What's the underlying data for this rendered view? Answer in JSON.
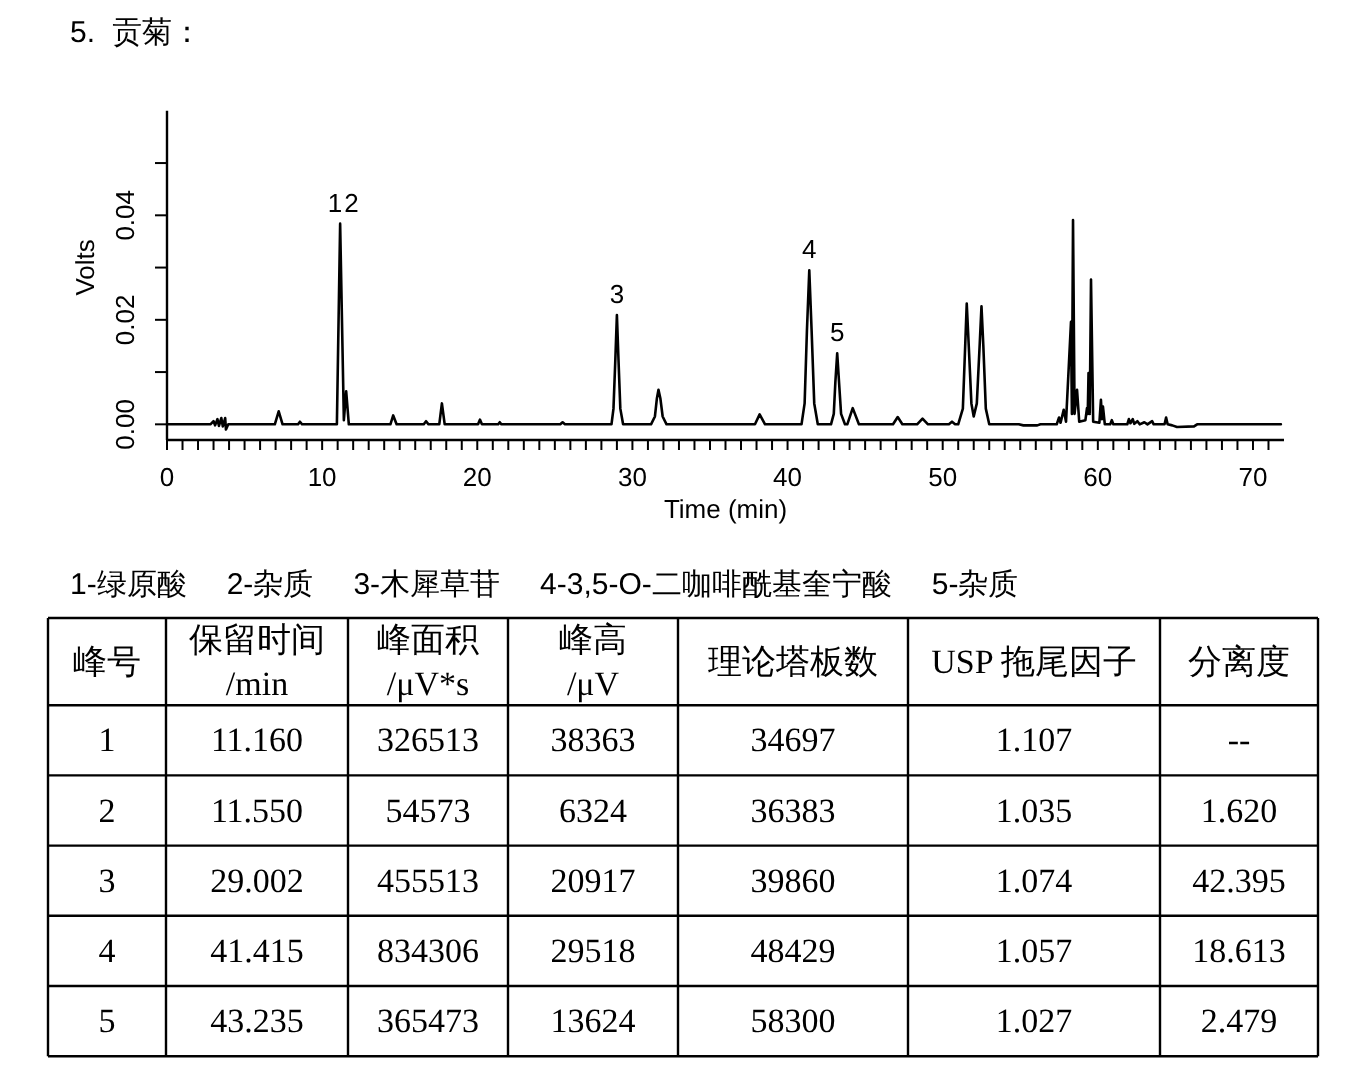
{
  "chart_data": [
    {
      "type": "line",
      "title": "5.  贡菊：",
      "xlabel": "Time (min)",
      "ylabel": "Volts",
      "color": "#000000",
      "line_style": "solid",
      "x": [
        0,
        2.8,
        3.0,
        3.1,
        3.25,
        3.35,
        3.5,
        3.6,
        3.75,
        3.8,
        3.95,
        6.95,
        7.2,
        7.45,
        8.45,
        8.57,
        8.7,
        10.95,
        11.16,
        11.4,
        11.55,
        11.72,
        14.4,
        14.58,
        14.8,
        16.55,
        16.7,
        16.85,
        17.55,
        17.72,
        17.9,
        20.05,
        20.17,
        20.3,
        21.35,
        21.45,
        21.55,
        25.35,
        25.5,
        25.65,
        28.65,
        28.78,
        28.9,
        29.0,
        29.1,
        29.22,
        29.4,
        31.2,
        31.45,
        31.58,
        31.68,
        31.8,
        31.95,
        32.2,
        37.9,
        38.2,
        38.55,
        40.9,
        41.1,
        41.25,
        41.4,
        41.55,
        41.72,
        41.95,
        42.8,
        42.98,
        43.08,
        43.2,
        43.32,
        43.45,
        43.7,
        43.85,
        44.2,
        44.6,
        46.8,
        47.1,
        47.4,
        48.35,
        48.7,
        49.05,
        50.4,
        50.6,
        50.8,
        51.0,
        51.3,
        51.45,
        51.55,
        51.68,
        51.85,
        52.0,
        52.2,
        52.38,
        52.5,
        52.62,
        52.78,
        53.0,
        54.9,
        55.2,
        56.1,
        56.3,
        57.35,
        57.5,
        57.6,
        57.8,
        57.95,
        58.27,
        58.33,
        58.4,
        58.5,
        58.66,
        58.8,
        59.2,
        59.3,
        59.35,
        59.4,
        59.48,
        59.56,
        59.7,
        60.1,
        60.2,
        60.27,
        60.33,
        60.45,
        60.8,
        60.9,
        61.0,
        61.9,
        62.0,
        62.1,
        62.25,
        62.35,
        62.55,
        62.7,
        63.0,
        63.2,
        63.5,
        63.6,
        64.3,
        64.4,
        64.5,
        64.8,
        65.1,
        66.2,
        66.4,
        71.8
      ],
      "values": [
        0,
        0,
        0.0006,
        -0.0002,
        0.001,
        -0.0003,
        0.0012,
        -0.0004,
        0.0012,
        -0.001,
        0,
        0,
        0.0025,
        0,
        0,
        0.0005,
        0,
        0,
        0.0384,
        0.0008,
        0.0063,
        0,
        0,
        0.0017,
        0,
        0,
        0.0006,
        0,
        0,
        0.004,
        0,
        0,
        0.0009,
        0,
        0,
        0.0004,
        0,
        0,
        0.0004,
        0,
        0,
        0.003,
        0.0125,
        0.0209,
        0.0125,
        0.003,
        0,
        0,
        0.0015,
        0.005,
        0.0066,
        0.005,
        0.0015,
        0,
        0,
        0.0019,
        0,
        0,
        0.004,
        0.018,
        0.0295,
        0.018,
        0.004,
        0,
        0,
        0.002,
        0.008,
        0.0136,
        0.008,
        0.002,
        0,
        0,
        0.0031,
        0,
        0,
        0.0014,
        0,
        0,
        0.0011,
        0,
        0,
        0.0005,
        0,
        0,
        0.003,
        0.015,
        0.0231,
        0.015,
        0.004,
        0.0015,
        0.004,
        0.015,
        0.0226,
        0.015,
        0.003,
        0,
        0,
        -0.0002,
        -0.0002,
        0,
        0,
        0.0013,
        0.0003,
        0.0028,
        0.0005,
        0.0196,
        0.002,
        0.0391,
        0.002,
        0.0066,
        0.0005,
        0.0008,
        0.0031,
        0.002,
        0.0098,
        0.002,
        0.0277,
        0.0005,
        0.0003,
        0.0047,
        0.001,
        0.0034,
        0,
        0,
        0.0008,
        0,
        0,
        0.001,
        0.0002,
        0.001,
        0.0001,
        0.0006,
        0,
        0.0004,
        0,
        0.0006,
        0,
        0,
        0.0013,
        0,
        -0.0002,
        -0.0005,
        -0.0004,
        0,
        0
      ],
      "xlim": [
        0,
        72
      ],
      "ylim": [
        -0.003,
        0.06
      ],
      "xticks": [
        0,
        {
          "value": 1,
          "label": null
        },
        {
          "value": 2,
          "label": null
        },
        {
          "value": 3,
          "label": null
        },
        {
          "value": 4,
          "label": null
        },
        {
          "value": 5,
          "label": null
        },
        {
          "value": 6,
          "label": null
        },
        {
          "value": 7,
          "label": null
        },
        {
          "value": 8,
          "label": null
        },
        {
          "value": 9,
          "label": null
        },
        10,
        {
          "value": 11,
          "label": null
        },
        {
          "value": 12,
          "label": null
        },
        {
          "value": 13,
          "label": null
        },
        {
          "value": 14,
          "label": null
        },
        {
          "value": 15,
          "label": null
        },
        {
          "value": 16,
          "label": null
        },
        {
          "value": 17,
          "label": null
        },
        {
          "value": 18,
          "label": null
        },
        {
          "value": 19,
          "label": null
        },
        20,
        {
          "value": 21,
          "label": null
        },
        {
          "value": 22,
          "label": null
        },
        {
          "value": 23,
          "label": null
        },
        {
          "value": 24,
          "label": null
        },
        {
          "value": 25,
          "label": null
        },
        {
          "value": 26,
          "label": null
        },
        {
          "value": 27,
          "label": null
        },
        {
          "value": 28,
          "label": null
        },
        {
          "value": 29,
          "label": null
        },
        30,
        {
          "value": 31,
          "label": null
        },
        {
          "value": 32,
          "label": null
        },
        {
          "value": 33,
          "label": null
        },
        {
          "value": 34,
          "label": null
        },
        {
          "value": 35,
          "label": null
        },
        {
          "value": 36,
          "label": null
        },
        {
          "value": 37,
          "label": null
        },
        {
          "value": 38,
          "label": null
        },
        {
          "value": 39,
          "label": null
        },
        40,
        {
          "value": 41,
          "label": null
        },
        {
          "value": 42,
          "label": null
        },
        {
          "value": 43,
          "label": null
        },
        {
          "value": 44,
          "label": null
        },
        {
          "value": 45,
          "label": null
        },
        {
          "value": 46,
          "label": null
        },
        {
          "value": 47,
          "label": null
        },
        {
          "value": 48,
          "label": null
        },
        {
          "value": 49,
          "label": null
        },
        50,
        {
          "value": 51,
          "label": null
        },
        {
          "value": 52,
          "label": null
        },
        {
          "value": 53,
          "label": null
        },
        {
          "value": 54,
          "label": null
        },
        {
          "value": 55,
          "label": null
        },
        {
          "value": 56,
          "label": null
        },
        {
          "value": 57,
          "label": null
        },
        {
          "value": 58,
          "label": null
        },
        {
          "value": 59,
          "label": null
        },
        60,
        {
          "value": 61,
          "label": null
        },
        {
          "value": 62,
          "label": null
        },
        {
          "value": 63,
          "label": null
        },
        {
          "value": 64,
          "label": null
        },
        {
          "value": 65,
          "label": null
        },
        {
          "value": 66,
          "label": null
        },
        {
          "value": 67,
          "label": null
        },
        {
          "value": 68,
          "label": null
        },
        {
          "value": 69,
          "label": null
        },
        70,
        {
          "value": 71,
          "label": null
        }
      ],
      "yticks": [
        {
          "value": 0,
          "label": "0.00"
        },
        {
          "value": 0.01,
          "label": null
        },
        {
          "value": 0.02,
          "label": "0.02"
        },
        {
          "value": 0.03,
          "label": null
        },
        {
          "value": 0.04,
          "label": "0.04"
        },
        {
          "value": 0.05,
          "label": null
        }
      ],
      "annotations": [
        {
          "text": "1",
          "x": 11.16,
          "y": 0.0384
        },
        {
          "text": "2",
          "x": 11.55,
          "y": 0.0384
        },
        {
          "text": "3",
          "x": 29.0,
          "y": 0.0209
        },
        {
          "text": "4",
          "x": 41.4,
          "y": 0.0295
        },
        {
          "text": "5",
          "x": 43.2,
          "y": 0.0136
        }
      ]
    },
    {
      "type": "heatmap",
      "annotations": [
        "1-绿原酸",
        "2-杂质",
        "3-木犀草苷",
        "4-3,5-O-二咖啡酰基奎宁酸",
        "5-杂质"
      ],
      "ylabel": "峰号",
      "y_categories": [
        "1",
        "2",
        "3",
        "4",
        "5"
      ],
      "categories": [
        "保留时间\n/min",
        "峰面积\n/μV*s",
        "峰高\n/μV",
        "理论塔板数",
        "USP 拖尾因子",
        "分离度"
      ],
      "cells": [
        [
          null,
          null,
          null,
          null,
          null,
          null
        ],
        [
          null,
          null,
          null,
          null,
          null,
          null
        ],
        [
          null,
          null,
          null,
          null,
          null,
          null
        ],
        [
          null,
          null,
          null,
          null,
          null,
          null
        ],
        [
          null,
          null,
          null,
          null,
          null,
          null
        ]
      ],
      "cell_labels": [
        [
          "11.160",
          "326513",
          "38363",
          "34697",
          "1.107",
          "--"
        ],
        [
          "11.550",
          "54573",
          "6324",
          "36383",
          "1.035",
          "1.620"
        ],
        [
          "29.002",
          "455513",
          "20917",
          "39860",
          "1.074",
          "42.395"
        ],
        [
          "41.415",
          "834306",
          "29518",
          "48429",
          "1.057",
          "18.613"
        ],
        [
          "43.235",
          "365473",
          "13624",
          "58300",
          "1.027",
          "2.479"
        ]
      ]
    }
  ]
}
